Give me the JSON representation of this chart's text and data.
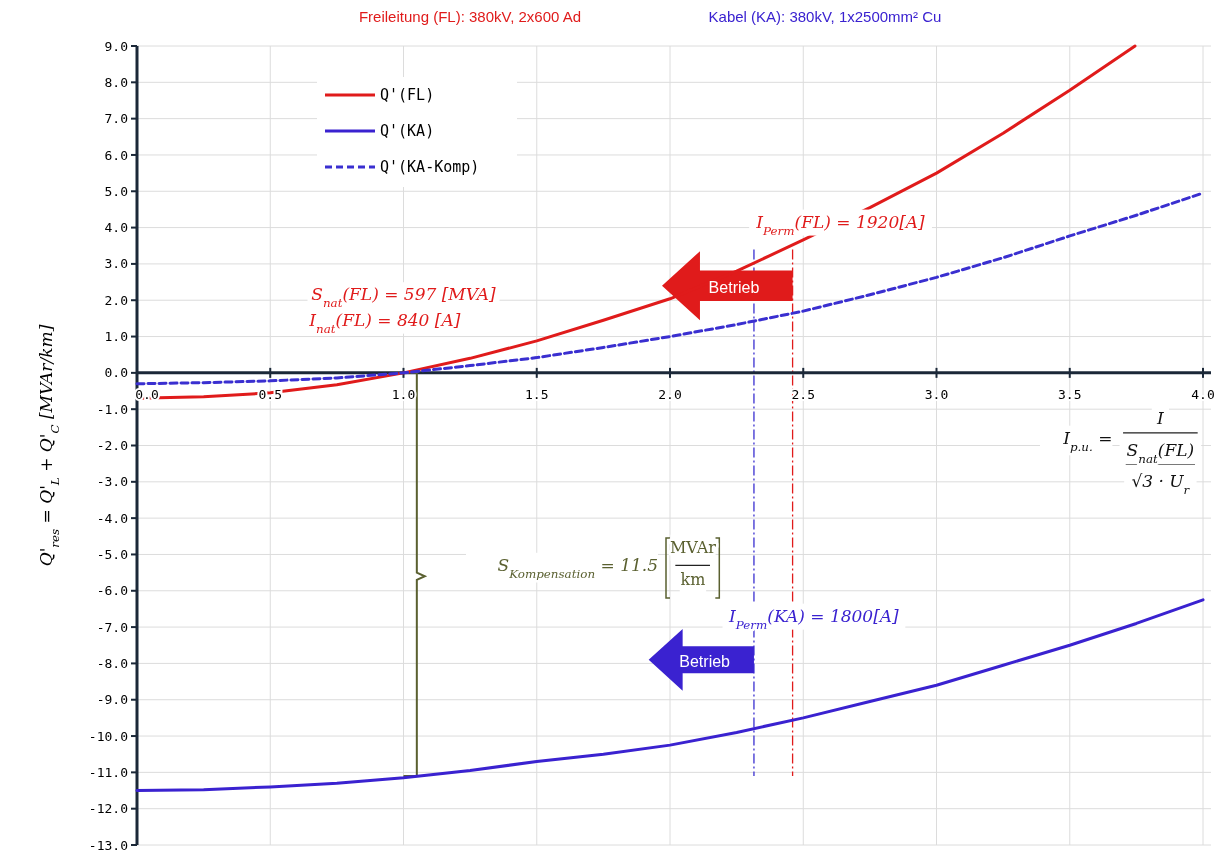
{
  "chart_data": {
    "type": "line",
    "title": "Freileitung (FL): 380kV, 2x600 Ad",
    "subtitle": "Kabel (KA): 380kV, 1x2500mm² Cu",
    "ylabel": "Q'$_{res}$ = Q'$_{L}$ + Q'$_{C}$ [MVAr/km]",
    "xlim": [
      0,
      4.03
    ],
    "ylim": [
      -13,
      9
    ],
    "xticks": [
      {
        "value": 0,
        "label": "0.0"
      },
      {
        "value": 0.5,
        "label": "0.5"
      },
      {
        "value": 1,
        "label": "1.0"
      },
      {
        "value": 1.5,
        "label": "1.5"
      },
      {
        "value": 2,
        "label": "2.0"
      },
      {
        "value": 2.5,
        "label": "2.5"
      },
      {
        "value": 3,
        "label": "3.0"
      },
      {
        "value": 3.5,
        "label": "3.5"
      },
      {
        "value": 4,
        "label": "4.0"
      }
    ],
    "yticks": [
      {
        "value": 9,
        "label": "9.0"
      },
      {
        "value": 8,
        "label": "8.0"
      },
      {
        "value": 7,
        "label": "7.0"
      },
      {
        "value": 6,
        "label": "6.0"
      },
      {
        "value": 5,
        "label": "5.0"
      },
      {
        "value": 4,
        "label": "4.0"
      },
      {
        "value": 3,
        "label": "3.0"
      },
      {
        "value": 2,
        "label": "2.0"
      },
      {
        "value": 1,
        "label": "1.0"
      },
      {
        "value": 0,
        "label": "0.0"
      },
      {
        "value": -1,
        "label": "-1.0"
      },
      {
        "value": -2,
        "label": "-2.0"
      },
      {
        "value": -3,
        "label": "-3.0"
      },
      {
        "value": -4,
        "label": "-4.0"
      },
      {
        "value": -5,
        "label": "-5.0"
      },
      {
        "value": -6,
        "label": "-6.0"
      },
      {
        "value": -7,
        "label": "-7.0"
      },
      {
        "value": -8,
        "label": "-8.0"
      },
      {
        "value": -9,
        "label": "-9.0"
      },
      {
        "value": -10,
        "label": "-10.0"
      },
      {
        "value": -11,
        "label": "-11.0"
      },
      {
        "value": -12,
        "label": "-12.0"
      },
      {
        "value": -13,
        "label": "-13.0"
      }
    ],
    "grid": true,
    "legend": "top left",
    "series": [
      {
        "name": "Q'(FL)",
        "color": "#e01b1b",
        "line_style": "solid",
        "x": [
          0,
          0.25,
          0.5,
          0.75,
          1,
          1.25,
          1.5,
          1.75,
          2,
          2.25,
          2.5,
          2.75,
          3,
          3.25,
          3.5,
          3.745
        ],
        "values": [
          -0.7,
          -0.66,
          -0.55,
          -0.33,
          0,
          0.4,
          0.88,
          1.45,
          2.04,
          2.8,
          3.66,
          4.55,
          5.5,
          6.6,
          7.78,
          9
        ]
      },
      {
        "name": "Q'(KA)",
        "color": "#3a22d0",
        "line_style": "solid",
        "x": [
          0,
          0.25,
          0.5,
          0.75,
          1,
          1.25,
          1.5,
          1.75,
          2,
          2.25,
          2.5,
          2.75,
          3,
          3.25,
          3.5,
          3.75,
          4
        ],
        "values": [
          -11.5,
          -11.48,
          -11.4,
          -11.3,
          -11.15,
          -10.95,
          -10.7,
          -10.5,
          -10.25,
          -9.9,
          -9.5,
          -9.05,
          -8.6,
          -8.05,
          -7.5,
          -6.9,
          -6.25
        ]
      },
      {
        "name": "Q'(KA-Komp)",
        "color": "#3a2fd0",
        "line_style": "dashed",
        "x": [
          0,
          0.25,
          0.5,
          0.75,
          1,
          1.25,
          1.5,
          1.75,
          2,
          2.25,
          2.5,
          2.75,
          3,
          3.25,
          3.5,
          3.75,
          4
        ],
        "values": [
          -0.3,
          -0.27,
          -0.22,
          -0.14,
          0,
          0.2,
          0.42,
          0.7,
          1,
          1.33,
          1.7,
          2.15,
          2.63,
          3.17,
          3.77,
          4.34,
          4.95
        ]
      }
    ],
    "ref_lines": [
      {
        "axis": "x",
        "value": 2.315,
        "color": "#3a2fd0",
        "line_style": "dashed"
      },
      {
        "axis": "x",
        "value": 2.46,
        "color": "#e01b1b",
        "line_style": "dashed"
      }
    ],
    "annotations": [
      "S$_{nat}$(FL) = 597 [MVA]",
      "I$_{nat}$(FL) = 840 [A]",
      "I$_{Perm}$(FL) = 1920[A]",
      "Betrieb",
      "Betrieb",
      "I$_{Perm}$(KA) = 1800[A]",
      "S$_{Kompensation}$ = 11.5",
      "MVAr",
      "km",
      "I$_{p.u.}$ =",
      "I",
      "S$_{nat}$(FL)",
      "√3 · U$_{r}$"
    ]
  }
}
